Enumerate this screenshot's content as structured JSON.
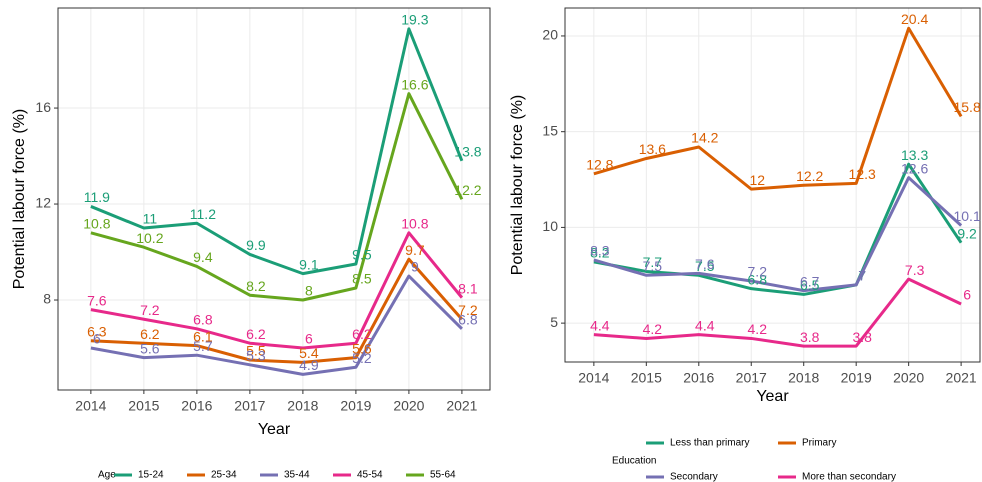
{
  "chart_data": [
    {
      "type": "line",
      "x_label": "Year",
      "y_label": "Potential labour force (%)",
      "legend_title": "Age",
      "x": [
        2014,
        2015,
        2016,
        2017,
        2018,
        2019,
        2020,
        2021
      ],
      "xlim": [
        2013.38,
        2021.53
      ],
      "xticks": [
        2014,
        2015,
        2016,
        2017,
        2018,
        2019,
        2020,
        2021
      ],
      "ylim": [
        4.25,
        20.17
      ],
      "yticks": [
        8,
        12,
        16
      ],
      "grid": true,
      "legend": "bottom",
      "series": [
        {
          "name": "15-24",
          "color": "#1b9e77",
          "values": [
            11.9,
            11,
            11.2,
            9.9,
            9.1,
            9.5,
            19.3,
            13.8
          ]
        },
        {
          "name": "25-34",
          "color": "#d95f02",
          "values": [
            6.3,
            6.2,
            6.1,
            5.5,
            5.4,
            5.6,
            9.7,
            7.2
          ]
        },
        {
          "name": "35-44",
          "color": "#7570b3",
          "values": [
            6,
            5.6,
            5.7,
            5.3,
            4.9,
            5.2,
            9,
            6.8
          ]
        },
        {
          "name": "45-54",
          "color": "#e7298a",
          "values": [
            7.6,
            7.2,
            6.8,
            6.2,
            6,
            6.2,
            10.8,
            8.1
          ]
        },
        {
          "name": "55-64",
          "color": "#66a61e",
          "values": [
            10.8,
            10.2,
            9.4,
            8.2,
            8,
            8.5,
            16.6,
            12.2
          ]
        }
      ]
    },
    {
      "type": "line",
      "x_label": "Year",
      "y_label": "Potential labour force (%)",
      "legend_title": "Education",
      "x": [
        2014,
        2015,
        2016,
        2017,
        2018,
        2019,
        2020,
        2021
      ],
      "xlim": [
        2013.45,
        2021.36
      ],
      "xticks": [
        2014,
        2015,
        2016,
        2017,
        2018,
        2019,
        2020,
        2021
      ],
      "ylim": [
        2.97,
        21.46
      ],
      "yticks": [
        5,
        10,
        15,
        20
      ],
      "grid": true,
      "legend": "bottom",
      "series": [
        {
          "name": "Less than primary",
          "color": "#1b9e77",
          "values": [
            8.2,
            7.7,
            7.5,
            6.8,
            6.5,
            7,
            13.3,
            9.2
          ]
        },
        {
          "name": "Primary",
          "color": "#d95f02",
          "values": [
            12.8,
            13.6,
            14.2,
            12,
            12.2,
            12.3,
            20.4,
            15.8
          ]
        },
        {
          "name": "Secondary",
          "color": "#7570b3",
          "values": [
            8.3,
            7.5,
            7.6,
            7.2,
            6.7,
            7,
            12.6,
            10.1
          ]
        },
        {
          "name": "More than secondary",
          "color": "#e7298a",
          "values": [
            4.4,
            4.2,
            4.4,
            4.2,
            3.8,
            3.8,
            7.3,
            6
          ]
        }
      ]
    }
  ]
}
